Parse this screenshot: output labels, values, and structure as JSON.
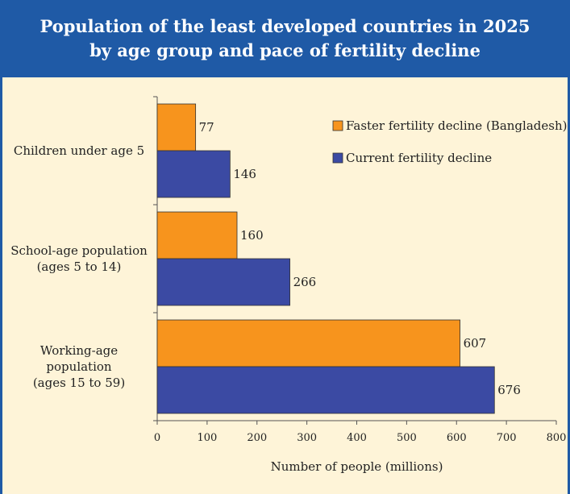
{
  "header": {
    "title_line1": "Population of the least developed countries in 2025",
    "title_line2": "by age group and pace of fertility decline"
  },
  "colors": {
    "faster": "#f7941d",
    "current": "#3b4aa3",
    "header": "#1f5aa6",
    "background": "#fef4d8"
  },
  "chart_data": {
    "type": "bar",
    "orientation": "horizontal",
    "categories": [
      [
        "Children under age 5"
      ],
      [
        "School-age population",
        "(ages 5 to 14)"
      ],
      [
        "Working-age",
        "population",
        "(ages 15 to 59)"
      ]
    ],
    "series": [
      {
        "name": "Faster fertility decline (Bangladesh)",
        "values": [
          77,
          160,
          607
        ],
        "color": "#f7941d"
      },
      {
        "name": "Current fertility decline",
        "values": [
          146,
          266,
          676
        ],
        "color": "#3b4aa3"
      }
    ],
    "xlabel": "Number of people (millions)",
    "xlim": [
      0,
      800
    ],
    "xticks": [
      0,
      100,
      200,
      300,
      400,
      500,
      600,
      700,
      800
    ],
    "grid": false,
    "legend_position": "top-right"
  }
}
